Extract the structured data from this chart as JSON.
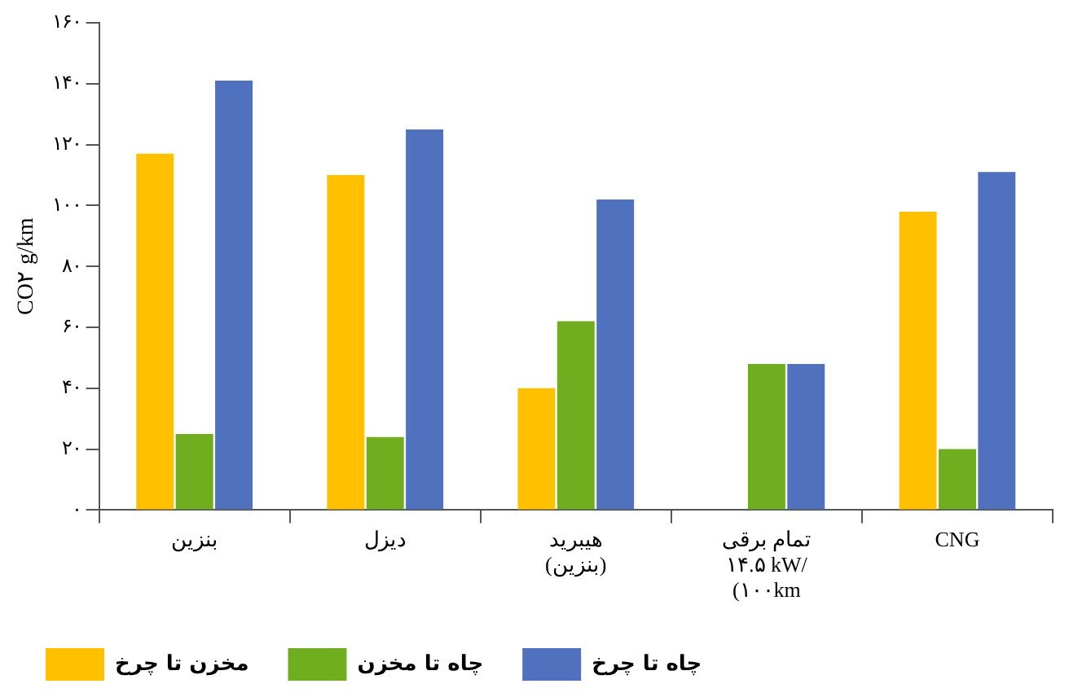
{
  "chart_data": {
    "type": "bar",
    "ylabel": "CO۲ g/km",
    "categories": [
      "بنزین",
      "دیزل",
      "هیبرید\n(بنزین)",
      "تمام برقی\n۱۴.۵ kW/\n(۱۰۰km",
      "CNG"
    ],
    "series": [
      {
        "name": "مخزن تا چرخ",
        "color": "#ffc000",
        "values": [
          117,
          110,
          40,
          null,
          98
        ]
      },
      {
        "name": "چاه تا مخزن",
        "color": "#70ad1f",
        "values": [
          25,
          24,
          62,
          48,
          20
        ]
      },
      {
        "name": "چاه تا چرخ",
        "color": "#4f71be",
        "values": [
          141,
          125,
          102,
          48,
          111
        ]
      }
    ],
    "ylim": [
      0,
      160
    ],
    "yticks": [
      {
        "value": 0,
        "label": "۰"
      },
      {
        "value": 20,
        "label": "۲۰"
      },
      {
        "value": 40,
        "label": "۴۰"
      },
      {
        "value": 60,
        "label": "۶۰"
      },
      {
        "value": 80,
        "label": "۸۰"
      },
      {
        "value": 100,
        "label": "۱۰۰"
      },
      {
        "value": 120,
        "label": "۱۲۰"
      },
      {
        "value": 140,
        "label": "۱۴۰"
      },
      {
        "value": 160,
        "label": "۱۶۰"
      }
    ],
    "grid": false,
    "legend": "bottom"
  }
}
